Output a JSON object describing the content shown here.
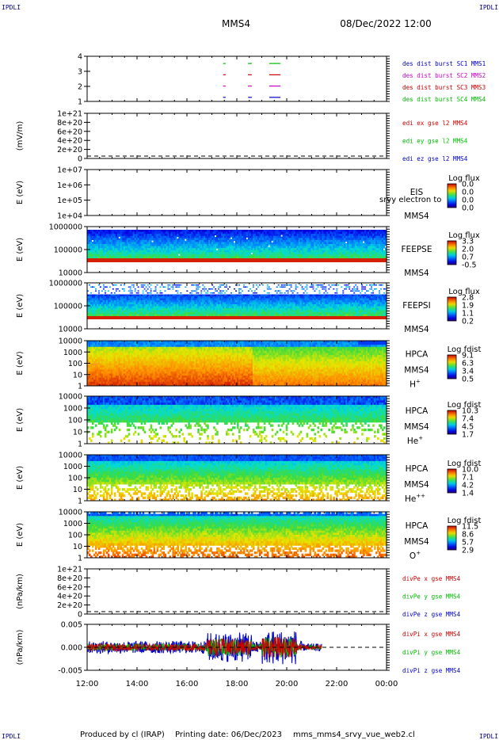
{
  "header": {
    "corner_tl": "IPDLI",
    "corner_tr": "IPDLI",
    "corner_bl": "IPDLI",
    "corner_br": "IPDLI",
    "spacecraft": "MMS4",
    "datetime": "08/Dec/2022 12:00"
  },
  "footer": {
    "produced": "Produced by cl (IRAP)",
    "printing": "Printing date: 06/Dec/2023",
    "file": "mms_mms4_srvy_vue_web2.cl"
  },
  "colors": {
    "blue": "#0000cc",
    "magenta": "#cc00cc",
    "red": "#cc0000",
    "green": "#00bb00"
  },
  "chart_data": [
    {
      "id": "burst",
      "type": "scatter",
      "ylabel": "",
      "yticks": [
        "4",
        "3",
        "2",
        "1"
      ],
      "series": [
        {
          "name": "des dist burst SC1 MMS1",
          "color": "#0000cc",
          "level": 1
        },
        {
          "name": "des dist burst SC2 MMS2",
          "color": "#cc00cc",
          "level": 2
        },
        {
          "name": "des dist burst SC3 MMS3",
          "color": "#cc0000",
          "level": 3
        },
        {
          "name": "des dist burst SC4 MMS4",
          "color": "#00bb00",
          "level": 4
        }
      ],
      "intervals_hours": [
        [
          17.45,
          17.55
        ],
        [
          18.45,
          18.6
        ],
        [
          19.3,
          19.75
        ]
      ]
    },
    {
      "id": "edi",
      "type": "line",
      "ylabel": "(mV/m)",
      "yticks": [
        "1e+21",
        "8e+20",
        "6e+20",
        "4e+20",
        "2e+20",
        "0"
      ],
      "series": [
        {
          "name": "edi ex gse l2 MMS4",
          "color": "#cc0000"
        },
        {
          "name": "edi ey gse l2 MMS4",
          "color": "#00bb00"
        },
        {
          "name": "edi ez gse l2 MMS4",
          "color": "#0000cc"
        }
      ]
    },
    {
      "id": "eis",
      "type": "heatmap",
      "ylabel": "E (eV)",
      "yticks": [
        "1e+07",
        "1e+06",
        "1e+05",
        "1e+04"
      ],
      "instrument": "EIS",
      "overlay": "srvy electron to",
      "sc": "MMS4",
      "cbar_title": "Log flux",
      "cbar_ticks": [
        "0.0",
        "0.0",
        "0.0",
        "0.0"
      ]
    },
    {
      "id": "feepse",
      "type": "heatmap",
      "ylabel": "E (eV)",
      "yticks": [
        "1000000",
        "100000",
        "10000"
      ],
      "instrument": "FEEPSE",
      "sc": "MMS4",
      "cbar_title": "Log flux",
      "cbar_ticks": [
        "3.3",
        "2.0",
        "0.7",
        "-0.5"
      ]
    },
    {
      "id": "feepsi",
      "type": "heatmap",
      "ylabel": "E (eV)",
      "yticks": [
        "1000000",
        "100000",
        "10000"
      ],
      "instrument": "FEEPSI",
      "sc": "MMS4",
      "cbar_title": "Log flux",
      "cbar_ticks": [
        "2.8",
        "1.9",
        "1.1",
        "0.2"
      ]
    },
    {
      "id": "hpca_h",
      "type": "heatmap",
      "ylabel": "E (eV)",
      "yticks": [
        "10000",
        "1000",
        "100",
        "10",
        "1"
      ],
      "instrument": "HPCA",
      "sc": "MMS4",
      "species": "H",
      "charge": "+",
      "cbar_title": "Log fdist",
      "cbar_ticks": [
        "9.1",
        "6.3",
        "3.4",
        "0.5"
      ]
    },
    {
      "id": "hpca_he",
      "type": "heatmap",
      "ylabel": "E (eV)",
      "yticks": [
        "10000",
        "1000",
        "100",
        "10",
        "1"
      ],
      "instrument": "HPCA",
      "sc": "MMS4",
      "species": "He",
      "charge": "+",
      "cbar_title": "Log fdist",
      "cbar_ticks": [
        "10.3",
        "7.4",
        "4.5",
        "1.7"
      ]
    },
    {
      "id": "hpca_hepp",
      "type": "heatmap",
      "ylabel": "E (eV)",
      "yticks": [
        "10000",
        "1000",
        "100",
        "10",
        "1"
      ],
      "instrument": "HPCA",
      "sc": "MMS4",
      "species": "He",
      "charge": "++",
      "cbar_title": "Log fdist",
      "cbar_ticks": [
        "10.0",
        "7.1",
        "4.2",
        "1.4"
      ]
    },
    {
      "id": "hpca_o",
      "type": "heatmap",
      "ylabel": "E (eV)",
      "yticks": [
        "10000",
        "1000",
        "100",
        "10",
        "1"
      ],
      "instrument": "HPCA",
      "sc": "MMS4",
      "species": "O",
      "charge": "+",
      "cbar_title": "Log fdist",
      "cbar_ticks": [
        "11.5",
        "8.6",
        "5.7",
        "2.9"
      ]
    },
    {
      "id": "divpe",
      "type": "line",
      "ylabel": "(nPa/km)",
      "yticks": [
        "1e+21",
        "8e+20",
        "6e+20",
        "4e+20",
        "2e+20",
        "0"
      ],
      "series": [
        {
          "name": "divPe x gse MMS4",
          "color": "#cc0000"
        },
        {
          "name": "divPe y gse MMS4",
          "color": "#00bb00"
        },
        {
          "name": "divPe z gse MMS4",
          "color": "#0000cc"
        }
      ]
    },
    {
      "id": "divpi",
      "type": "line",
      "ylabel": "(nPa/km)",
      "yticks": [
        "0.005",
        "0.000",
        "-0.005"
      ],
      "ylim": [
        -0.0075,
        0.0075
      ],
      "data_end_hour": 21.4,
      "series": [
        {
          "name": "divPi x gse MMS4",
          "color": "#cc0000"
        },
        {
          "name": "divPi y gse MMS4",
          "color": "#00bb00"
        },
        {
          "name": "divPi z gse MMS4",
          "color": "#0000cc"
        }
      ]
    }
  ],
  "xaxis": {
    "ticks": [
      "12:00",
      "14:00",
      "16:00",
      "18:00",
      "20:00",
      "22:00",
      "00:00"
    ],
    "range_hours": [
      12,
      24
    ]
  }
}
